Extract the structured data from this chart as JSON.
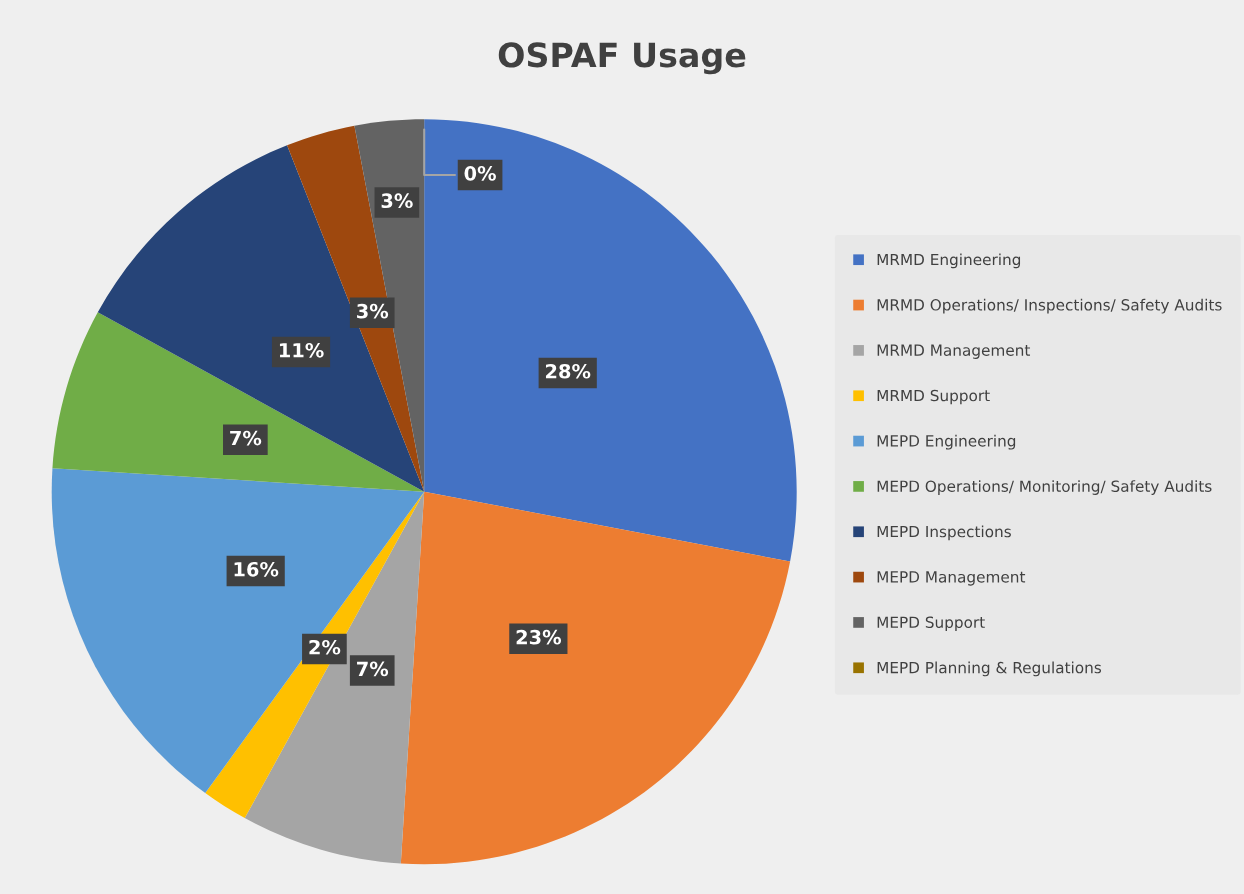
{
  "chart_data": {
    "type": "pie",
    "title": "OSPAF Usage",
    "categories": [
      "MRMD Engineering",
      "MRMD Operations/ Inspections/ Safety Audits",
      "MRMD Management",
      "MRMD Support",
      "MEPD Engineering",
      "MEPD Operations/ Monitoring/ Safety Audits",
      "MEPD Inspections",
      "MEPD Management",
      "MEPD Support",
      "MEPD Planning & Regulations"
    ],
    "values": [
      28,
      23,
      7,
      2,
      16,
      7,
      11,
      3,
      3,
      0
    ],
    "colors": [
      "#4472c4",
      "#ed7d31",
      "#a5a5a5",
      "#ffc000",
      "#5b9bd5",
      "#70ad47",
      "#264478",
      "#9e480e",
      "#636363",
      "#997300"
    ],
    "value_labels": [
      "28%",
      "23%",
      "7%",
      "2%",
      "16%",
      "7%",
      "11%",
      "3%",
      "3%",
      "0%"
    ],
    "legend": "right"
  }
}
